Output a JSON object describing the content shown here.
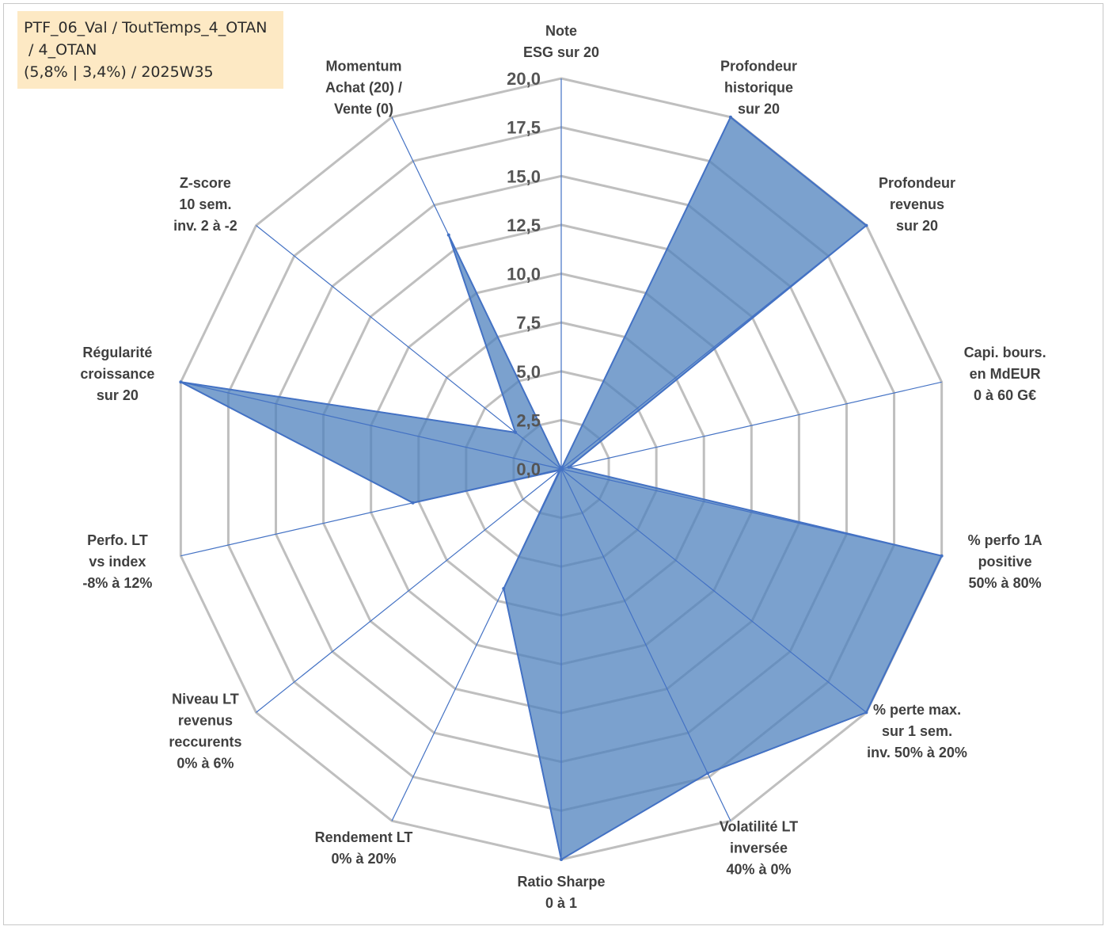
{
  "header": {
    "lines": [
      "PTF_06_Val / ToutTemps_4_OTAN",
      " / 4_OTAN",
      "(5,8% | 3,4%) / 2025W35"
    ]
  },
  "chart_data": {
    "type": "radar",
    "title": "",
    "rlim": [
      0,
      20
    ],
    "ticks": [
      "0,0",
      "2,5",
      "5,0",
      "7,5",
      "10,0",
      "12,5",
      "15,0",
      "17,5",
      "20,0"
    ],
    "grid": true,
    "categories": [
      "Note\nESG sur 20",
      "Profondeur\nhistorique\nsur 20",
      "Profondeur\nrevenus\nsur 20",
      "Capi. bours.\nen MdEUR\n0 à 60 G€",
      "% perfo 1A\npositive\n50% à 80%",
      "% perte max.\nsur 1 sem.\ninv. 50% à 20%",
      "Volatilité LT\ninversée\n40% à 0%",
      "Ratio Sharpe\n0 à 1",
      "Rendement LT\n0% à 20%",
      "Niveau LT\nrevenus\nreccurents\n0% à 6%",
      "Perfo. LT\nvs index\n-8% à 12%",
      "Régularité\ncroissance\nsur 20",
      "Z-score\n10 sem.\ninv. 2 à -2",
      "Momentum\nAchat (20) /\nVente (0)"
    ],
    "series": [
      {
        "values": [
          0,
          20,
          20,
          0.4,
          20,
          20,
          17.3,
          20,
          6.8,
          0.1,
          7.8,
          20,
          3.0,
          13.3
        ],
        "color": "#4f81bd"
      }
    ],
    "colors": {
      "fill": "#4f81bd",
      "line": "#4472c4",
      "grid": "#bfbfbf",
      "title_bg": "#fde9c4"
    }
  }
}
